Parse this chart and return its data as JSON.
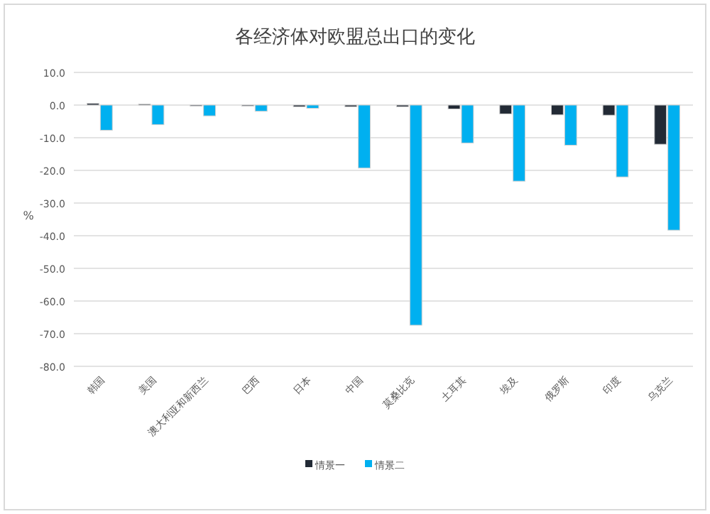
{
  "chart_data": {
    "type": "bar",
    "title": "各经济体对欧盟总出口的变化",
    "ylabel": "%",
    "categories": [
      "韩国",
      "美国",
      "澳大利亚和新西兰",
      "巴西",
      "日本",
      "中国",
      "莫桑比克",
      "土耳其",
      "埃及",
      "俄罗斯",
      "印度",
      "乌克兰"
    ],
    "series": [
      {
        "name": "情景一",
        "color": "#222a35",
        "values": [
          0.5,
          0.3,
          -0.3,
          -0.3,
          -0.5,
          -0.5,
          -0.5,
          -1.2,
          -2.7,
          -3.0,
          -3.1,
          -12.0
        ]
      },
      {
        "name": "情景二",
        "color": "#00b0f0",
        "values": [
          -7.7,
          -6.0,
          -3.3,
          -1.9,
          -1.0,
          -19.3,
          -67.4,
          -11.6,
          -23.3,
          -12.3,
          -22.0,
          -38.3
        ]
      }
    ],
    "ylim": [
      -80,
      10
    ],
    "yticks": [
      {
        "value": 10,
        "label": "10.0"
      },
      {
        "value": 0,
        "label": "0.0"
      },
      {
        "value": -10,
        "label": "-10.0"
      },
      {
        "value": -20,
        "label": "-20.0"
      },
      {
        "value": -30,
        "label": "-30.0"
      },
      {
        "value": -40,
        "label": "-40.0"
      },
      {
        "value": -50,
        "label": "-50.0"
      },
      {
        "value": -60,
        "label": "-60.0"
      },
      {
        "value": -70,
        "label": "-70.0"
      },
      {
        "value": -80,
        "label": "-80.0"
      }
    ],
    "grid": "y",
    "legend": "bottom"
  }
}
